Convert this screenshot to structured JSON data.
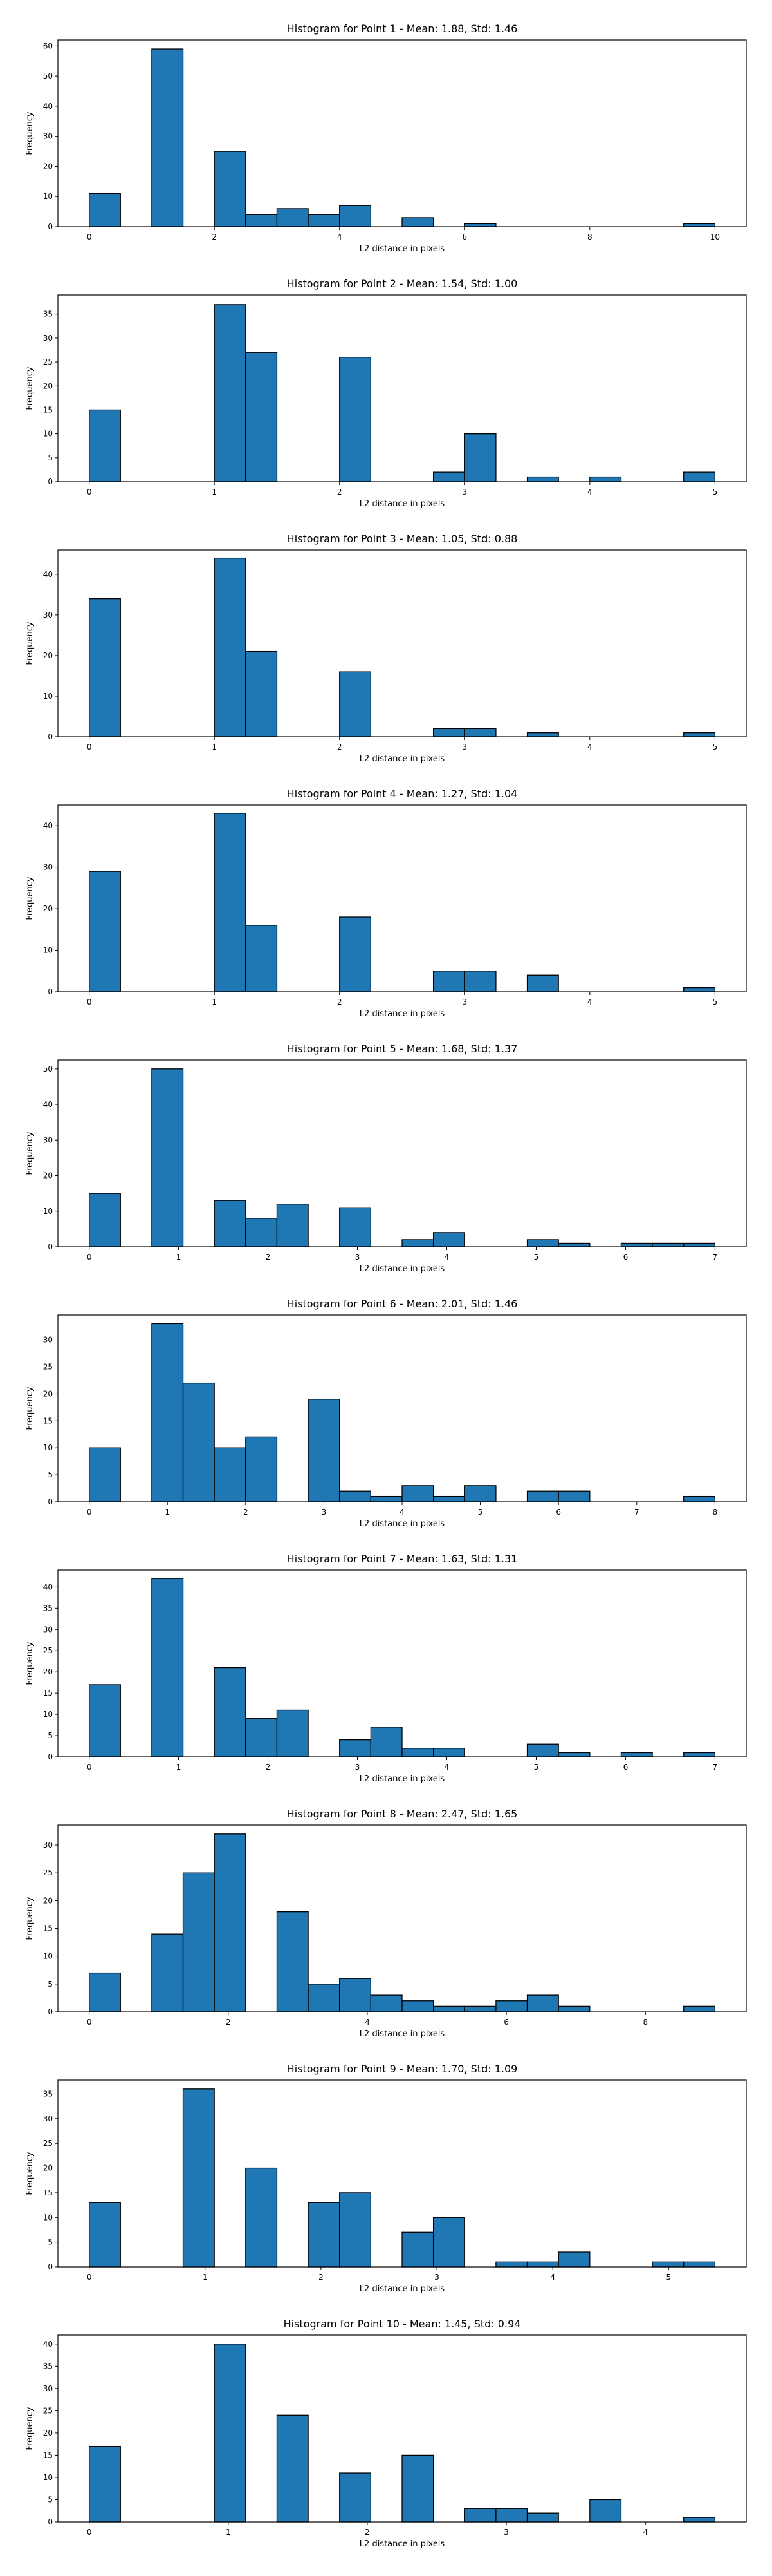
{
  "colors": {
    "bar_fill": "#1f77b4",
    "bar_edge": "#000000",
    "axis": "#000000"
  },
  "chart_data": [
    {
      "type": "bar",
      "title": "Histogram for Point 1 - Mean: 1.88, Std: 1.46",
      "xlabel": "L2 distance in pixels",
      "ylabel": "Frequency",
      "xlim": [
        -0.5,
        10.5
      ],
      "ylim": [
        0,
        62
      ],
      "xticks": [
        0,
        2,
        4,
        6,
        8,
        10
      ],
      "yticks": [
        0,
        10,
        20,
        30,
        40,
        50,
        60
      ],
      "bin_edges": [
        0,
        0.5,
        1,
        1.5,
        2,
        2.5,
        3,
        3.5,
        4,
        4.5,
        5,
        5.5,
        6,
        6.5,
        7,
        7.5,
        8,
        8.5,
        9,
        9.5,
        10
      ],
      "values": [
        11,
        0,
        59,
        0,
        25,
        4,
        6,
        4,
        7,
        0,
        3,
        0,
        1,
        0,
        0,
        0,
        0,
        0,
        0,
        1
      ]
    },
    {
      "type": "bar",
      "title": "Histogram for Point 2 - Mean: 1.54, Std: 1.00",
      "xlabel": "L2 distance in pixels",
      "ylabel": "Frequency",
      "xlim": [
        -0.25,
        5.25
      ],
      "ylim": [
        0,
        39
      ],
      "xticks": [
        0,
        1,
        2,
        3,
        4,
        5
      ],
      "yticks": [
        0,
        5,
        10,
        15,
        20,
        25,
        30,
        35
      ],
      "bin_edges": [
        0,
        0.25,
        0.5,
        0.75,
        1,
        1.25,
        1.5,
        1.75,
        2,
        2.25,
        2.5,
        2.75,
        3,
        3.25,
        3.5,
        3.75,
        4,
        4.25,
        4.5,
        4.75,
        5
      ],
      "values": [
        15,
        0,
        0,
        0,
        37,
        27,
        0,
        0,
        26,
        0,
        0,
        2,
        10,
        0,
        1,
        0,
        1,
        0,
        0,
        2
      ]
    },
    {
      "type": "bar",
      "title": "Histogram for Point 3 - Mean: 1.05, Std: 0.88",
      "xlabel": "L2 distance in pixels",
      "ylabel": "Frequency",
      "xlim": [
        -0.25,
        5.25
      ],
      "ylim": [
        0,
        46
      ],
      "xticks": [
        0,
        1,
        2,
        3,
        4,
        5
      ],
      "yticks": [
        0,
        10,
        20,
        30,
        40
      ],
      "bin_edges": [
        0,
        0.25,
        0.5,
        0.75,
        1,
        1.25,
        1.5,
        1.75,
        2,
        2.25,
        2.5,
        2.75,
        3,
        3.25,
        3.5,
        3.75,
        4,
        4.25,
        4.5,
        4.75,
        5
      ],
      "values": [
        34,
        0,
        0,
        0,
        44,
        21,
        0,
        0,
        16,
        0,
        0,
        2,
        2,
        0,
        1,
        0,
        0,
        0,
        0,
        1
      ]
    },
    {
      "type": "bar",
      "title": "Histogram for Point 4 - Mean: 1.27, Std: 1.04",
      "xlabel": "L2 distance in pixels",
      "ylabel": "Frequency",
      "xlim": [
        -0.25,
        5.25
      ],
      "ylim": [
        0,
        45
      ],
      "xticks": [
        0,
        1,
        2,
        3,
        4,
        5
      ],
      "yticks": [
        0,
        10,
        20,
        30,
        40
      ],
      "bin_edges": [
        0,
        0.25,
        0.5,
        0.75,
        1,
        1.25,
        1.5,
        1.75,
        2,
        2.25,
        2.5,
        2.75,
        3,
        3.25,
        3.5,
        3.75,
        4,
        4.25,
        4.5,
        4.75,
        5
      ],
      "values": [
        29,
        0,
        0,
        0,
        43,
        16,
        0,
        0,
        18,
        0,
        0,
        5,
        5,
        0,
        4,
        0,
        0,
        0,
        0,
        1
      ]
    },
    {
      "type": "bar",
      "title": "Histogram for Point 5 - Mean: 1.68, Std: 1.37",
      "xlabel": "L2 distance in pixels",
      "ylabel": "Frequency",
      "xlim": [
        -0.35,
        7.35
      ],
      "ylim": [
        0,
        52.5
      ],
      "xticks": [
        0,
        1,
        2,
        3,
        4,
        5,
        6,
        7
      ],
      "yticks": [
        0,
        10,
        20,
        30,
        40,
        50
      ],
      "bin_edges": [
        0,
        0.35,
        0.7,
        1.05,
        1.4,
        1.75,
        2.1,
        2.45,
        2.8,
        3.15,
        3.5,
        3.85,
        4.2,
        4.55,
        4.9,
        5.25,
        5.6,
        5.95,
        6.3,
        6.65,
        7
      ],
      "values": [
        15,
        0,
        50,
        0,
        13,
        8,
        12,
        0,
        11,
        0,
        2,
        4,
        0,
        0,
        2,
        1,
        0,
        1,
        1,
        1
      ]
    },
    {
      "type": "bar",
      "title": "Histogram for Point 6 - Mean: 2.01, Std: 1.46",
      "xlabel": "L2 distance in pixels",
      "ylabel": "Frequency",
      "xlim": [
        -0.4,
        8.4
      ],
      "ylim": [
        0,
        34.6
      ],
      "xticks": [
        0,
        1,
        2,
        3,
        4,
        5,
        6,
        7,
        8
      ],
      "yticks": [
        0,
        5,
        10,
        15,
        20,
        25,
        30
      ],
      "bin_edges": [
        0,
        0.4,
        0.8,
        1.2,
        1.6,
        2,
        2.4,
        2.8,
        3.2,
        3.6,
        4,
        4.4,
        4.8,
        5.2,
        5.6,
        6,
        6.4,
        6.8,
        7.2,
        7.6,
        8
      ],
      "values": [
        10,
        0,
        33,
        22,
        10,
        12,
        0,
        19,
        2,
        1,
        3,
        1,
        3,
        0,
        2,
        2,
        0,
        0,
        0,
        1
      ]
    },
    {
      "type": "bar",
      "title": "Histogram for Point 7 - Mean: 1.63, Std: 1.31",
      "xlabel": "L2 distance in pixels",
      "ylabel": "Frequency",
      "xlim": [
        -0.35,
        7.35
      ],
      "ylim": [
        0,
        44
      ],
      "xticks": [
        0,
        1,
        2,
        3,
        4,
        5,
        6,
        7
      ],
      "yticks": [
        0,
        5,
        10,
        15,
        20,
        25,
        30,
        35,
        40
      ],
      "bin_edges": [
        0,
        0.35,
        0.7,
        1.05,
        1.4,
        1.75,
        2.1,
        2.45,
        2.8,
        3.15,
        3.5,
        3.85,
        4.2,
        4.55,
        4.9,
        5.25,
        5.6,
        5.95,
        6.3,
        6.65,
        7
      ],
      "values": [
        17,
        0,
        42,
        0,
        21,
        9,
        11,
        0,
        4,
        7,
        2,
        2,
        0,
        0,
        3,
        1,
        0,
        1,
        0,
        1
      ]
    },
    {
      "type": "bar",
      "title": "Histogram for Point 8 - Mean: 2.47, Std: 1.65",
      "xlabel": "L2 distance in pixels",
      "ylabel": "Frequency",
      "xlim": [
        -0.45,
        9.45
      ],
      "ylim": [
        0,
        33.6
      ],
      "xticks": [
        0,
        2,
        4,
        6,
        8
      ],
      "yticks": [
        0,
        5,
        10,
        15,
        20,
        25,
        30
      ],
      "bin_edges": [
        0,
        0.45,
        0.9,
        1.35,
        1.8,
        2.25,
        2.7,
        3.15,
        3.6,
        4.05,
        4.5,
        4.95,
        5.4,
        5.85,
        6.3,
        6.75,
        7.2,
        7.65,
        8.1,
        8.55,
        9
      ],
      "values": [
        7,
        0,
        14,
        25,
        32,
        0,
        18,
        5,
        6,
        3,
        2,
        1,
        1,
        2,
        3,
        1,
        0,
        0,
        0,
        1
      ]
    },
    {
      "type": "bar",
      "title": "Histogram for Point 9 - Mean: 1.70, Std: 1.09",
      "xlabel": "L2 distance in pixels",
      "ylabel": "Frequency",
      "xlim": [
        -0.27,
        5.67
      ],
      "ylim": [
        0,
        37.8
      ],
      "xticks": [
        0,
        1,
        2,
        3,
        4,
        5
      ],
      "yticks": [
        0,
        5,
        10,
        15,
        20,
        25,
        30,
        35
      ],
      "bin_edges": [
        0,
        0.27,
        0.54,
        0.81,
        1.08,
        1.35,
        1.62,
        1.89,
        2.16,
        2.43,
        2.7,
        2.97,
        3.24,
        3.51,
        3.78,
        4.05,
        4.32,
        4.59,
        4.86,
        5.13,
        5.4
      ],
      "values": [
        13,
        0,
        0,
        36,
        0,
        20,
        0,
        13,
        15,
        0,
        7,
        10,
        0,
        1,
        1,
        3,
        0,
        0,
        1,
        1
      ]
    },
    {
      "type": "bar",
      "title": "Histogram for Point 10 - Mean: 1.45, Std: 0.94",
      "xlabel": "L2 distance in pixels",
      "ylabel": "Frequency",
      "xlim": [
        -0.225,
        4.725
      ],
      "ylim": [
        0,
        42
      ],
      "xticks": [
        0,
        1,
        2,
        3,
        4
      ],
      "yticks": [
        0,
        5,
        10,
        15,
        20,
        25,
        30,
        35,
        40
      ],
      "bin_edges": [
        0,
        0.225,
        0.45,
        0.675,
        0.9,
        1.125,
        1.35,
        1.575,
        1.8,
        2.025,
        2.25,
        2.475,
        2.7,
        2.925,
        3.15,
        3.375,
        3.6,
        3.825,
        4.05,
        4.275,
        4.5
      ],
      "values": [
        17,
        0,
        0,
        0,
        40,
        0,
        24,
        0,
        11,
        0,
        15,
        0,
        3,
        3,
        2,
        0,
        5,
        0,
        0,
        1
      ]
    }
  ]
}
